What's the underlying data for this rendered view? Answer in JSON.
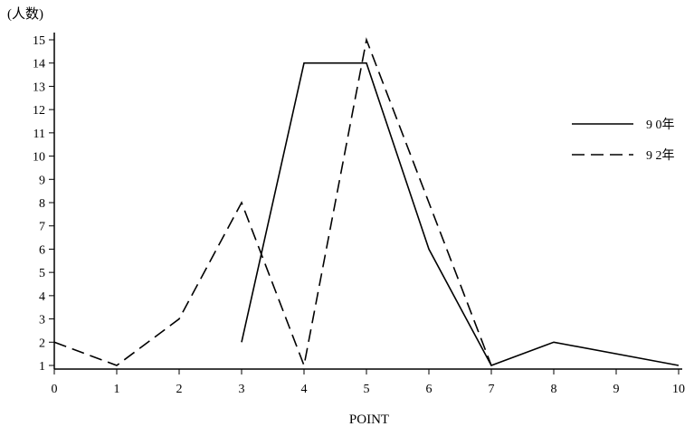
{
  "chart_data": {
    "type": "line",
    "ylabel": "(人数)",
    "xlabel": "POINT",
    "x": [
      0,
      1,
      2,
      3,
      4,
      5,
      6,
      7,
      8,
      9,
      10
    ],
    "xlim": [
      0,
      10
    ],
    "ylim": [
      1,
      15
    ],
    "xticks": [
      "0",
      "1",
      "2",
      "3",
      "4",
      "5",
      "6",
      "7",
      "8",
      "9",
      "10"
    ],
    "yticks": [
      "1",
      "2",
      "3",
      "4",
      "5",
      "6",
      "7",
      "8",
      "9",
      "10",
      "11",
      "12",
      "13",
      "14",
      "15"
    ],
    "grid": false,
    "legend_position": "right",
    "series": [
      {
        "name": "9 0年",
        "style": "solid",
        "points": [
          [
            3,
            2
          ],
          [
            4,
            14
          ],
          [
            5,
            14
          ],
          [
            6,
            6
          ],
          [
            7,
            1
          ],
          [
            8,
            2
          ],
          [
            10,
            1
          ]
        ]
      },
      {
        "name": "9 2年",
        "style": "dashed",
        "points": [
          [
            0,
            2
          ],
          [
            1,
            1
          ],
          [
            2,
            3
          ],
          [
            3,
            8
          ],
          [
            4,
            1
          ],
          [
            5,
            15
          ],
          [
            6,
            8
          ],
          [
            7,
            1
          ]
        ]
      }
    ],
    "colors": {
      "line": "#000000",
      "background": "#ffffff"
    }
  }
}
